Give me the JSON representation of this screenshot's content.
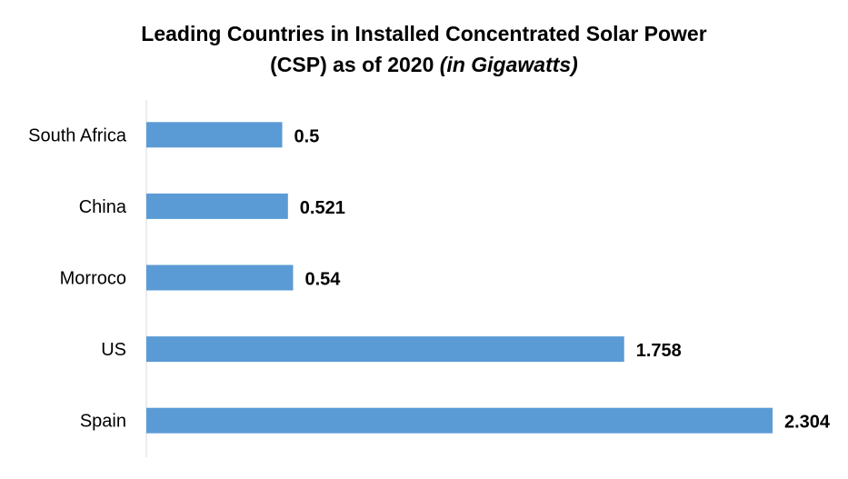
{
  "chart_data": {
    "type": "bar",
    "orientation": "horizontal",
    "title_line1": "Leading Countries in Installed Concentrated Solar Power",
    "title_line2_main": "(CSP) as of 2020 ",
    "title_line2_italic": "(in Gigawatts)",
    "categories": [
      "South Africa",
      "China",
      "Morroco",
      "US",
      "Spain"
    ],
    "values": [
      0.5,
      0.521,
      0.54,
      1.758,
      2.304
    ],
    "value_labels": [
      "0.5",
      "0.521",
      "0.54",
      "1.758",
      "2.304"
    ],
    "xlabel": "",
    "ylabel": "",
    "xlim": [
      0,
      2.304
    ],
    "grid": false,
    "legend": "none",
    "bar_color": "#5b9bd5"
  }
}
